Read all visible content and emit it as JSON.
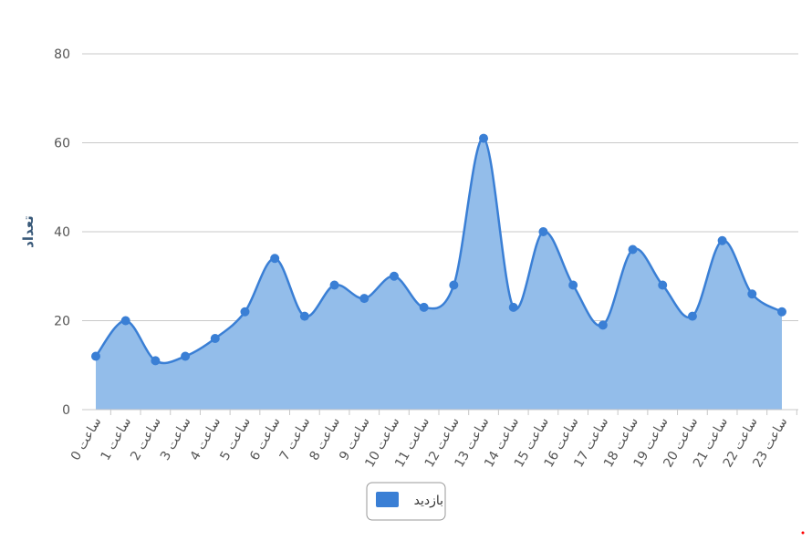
{
  "chart_data": {
    "type": "area",
    "x_prefix": "ساعت",
    "categories": [
      "0",
      "1",
      "2",
      "3",
      "4",
      "5",
      "6",
      "7",
      "8",
      "9",
      "10",
      "11",
      "12",
      "13",
      "14",
      "15",
      "16",
      "17",
      "18",
      "19",
      "20",
      "21",
      "22",
      "23"
    ],
    "series": [
      {
        "name": "بازدید",
        "color": "#3a7fd5",
        "fill_color": "#93bdea",
        "values": [
          12,
          20,
          11,
          12,
          16,
          22,
          34,
          21,
          28,
          25,
          30,
          23,
          28,
          61,
          23,
          40,
          28,
          19,
          36,
          28,
          21,
          38,
          26,
          22
        ]
      }
    ],
    "ylabel": "تعداد",
    "ylim": [
      0,
      80
    ],
    "yticks": [
      0,
      20,
      40,
      60,
      80
    ],
    "grid": true,
    "legend_position": "bottom-center"
  }
}
